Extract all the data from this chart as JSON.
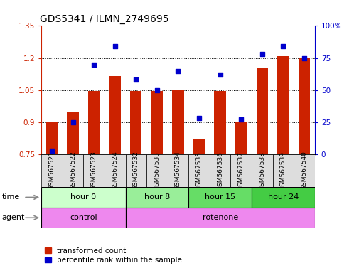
{
  "title": "GDS5341 / ILMN_2749695",
  "samples": [
    "GSM567521",
    "GSM567522",
    "GSM567523",
    "GSM567524",
    "GSM567532",
    "GSM567533",
    "GSM567534",
    "GSM567535",
    "GSM567536",
    "GSM567537",
    "GSM567538",
    "GSM567539",
    "GSM567540"
  ],
  "transformed_count": [
    0.9,
    0.95,
    1.045,
    1.115,
    1.045,
    1.045,
    1.05,
    0.82,
    1.045,
    0.9,
    1.155,
    1.21,
    1.2
  ],
  "percentile_rank": [
    3,
    25,
    70,
    84,
    58,
    50,
    65,
    28,
    62,
    27,
    78,
    84,
    75
  ],
  "ylim_left": [
    0.75,
    1.35
  ],
  "ylim_right": [
    0,
    100
  ],
  "yticks_left": [
    0.75,
    0.9,
    1.05,
    1.2,
    1.35
  ],
  "yticks_right": [
    0,
    25,
    50,
    75,
    100
  ],
  "ytick_labels_left": [
    "0.75",
    "0.9",
    "1.05",
    "1.2",
    "1.35"
  ],
  "ytick_labels_right": [
    "0",
    "25",
    "50",
    "75",
    "100%"
  ],
  "bar_color": "#cc2200",
  "dot_color": "#0000cc",
  "grid_color": "#000000",
  "time_groups": [
    {
      "label": "hour 0",
      "start": 0,
      "end": 3,
      "color": "#ccffcc"
    },
    {
      "label": "hour 8",
      "start": 4,
      "end": 6,
      "color": "#99ee99"
    },
    {
      "label": "hour 15",
      "start": 7,
      "end": 9,
      "color": "#66dd66"
    },
    {
      "label": "hour 24",
      "start": 10,
      "end": 12,
      "color": "#44cc44"
    }
  ],
  "agent_groups": [
    {
      "label": "control",
      "start": 0,
      "end": 3,
      "color": "#ee88ee"
    },
    {
      "label": "rotenone",
      "start": 4,
      "end": 12,
      "color": "#ee88ee"
    }
  ],
  "legend_red_label": "transformed count",
  "legend_blue_label": "percentile rank within the sample",
  "xlabel_time": "time",
  "xlabel_agent": "agent",
  "bar_width": 0.55,
  "cell_color": "#dddddd",
  "title_fontsize": 10,
  "tick_fontsize": 7.5,
  "sample_fontsize": 6.5,
  "row_fontsize": 8
}
